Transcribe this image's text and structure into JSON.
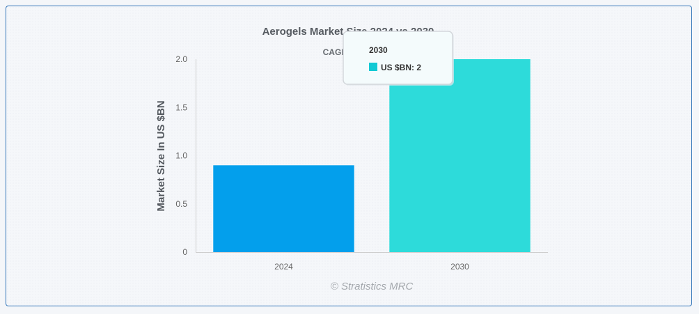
{
  "chart_data": {
    "type": "bar",
    "title": "Aerogels Market Size 2024 vs 2030",
    "subtitle": "CAGR 14.4%",
    "categories": [
      "2024",
      "2030"
    ],
    "series": [
      {
        "name": "US $BN",
        "values": [
          0.9,
          2
        ],
        "colors": [
          "#039fec",
          "#2ddbda"
        ]
      }
    ],
    "ylabel": "Market Size In US $BN",
    "xlabel": "",
    "ylim": [
      0,
      2
    ],
    "yticks": [
      0,
      0.5,
      1.0,
      1.5,
      2.0
    ],
    "ytick_labels": [
      "0",
      "0.5",
      "1.0",
      "1.5",
      "2.0"
    ],
    "grid": false,
    "credit": "© Stratistics MRC",
    "tooltip": {
      "visible": true,
      "category": "2030",
      "series_name": "US $BN",
      "value": "2",
      "text": "US $BN: 2",
      "marker_color": "#12c9d4"
    }
  },
  "colors": {
    "frame_border": "#2f73b8",
    "axis": "#cccccc"
  }
}
